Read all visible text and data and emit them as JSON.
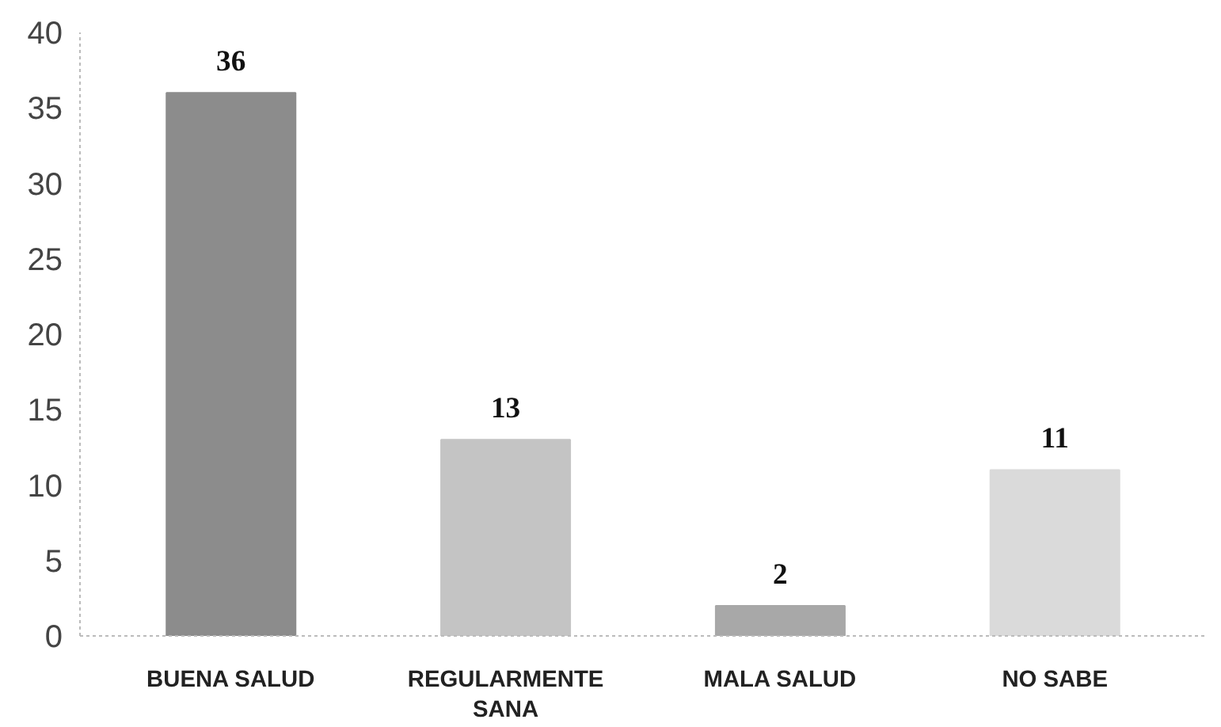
{
  "chart_data": {
    "type": "bar",
    "categories": [
      "BUENA SALUD",
      "REGULARMENTE SANA",
      "MALA SALUD",
      "NO SABE"
    ],
    "values": [
      36,
      13,
      2,
      11
    ],
    "colors": [
      "#8c8c8c",
      "#c4c4c4",
      "#a8a8a8",
      "#dadada"
    ],
    "ylim": [
      0,
      40
    ],
    "yticks": [
      0,
      5,
      10,
      15,
      20,
      25,
      30,
      35,
      40
    ],
    "grid": false,
    "data_labels": true
  }
}
